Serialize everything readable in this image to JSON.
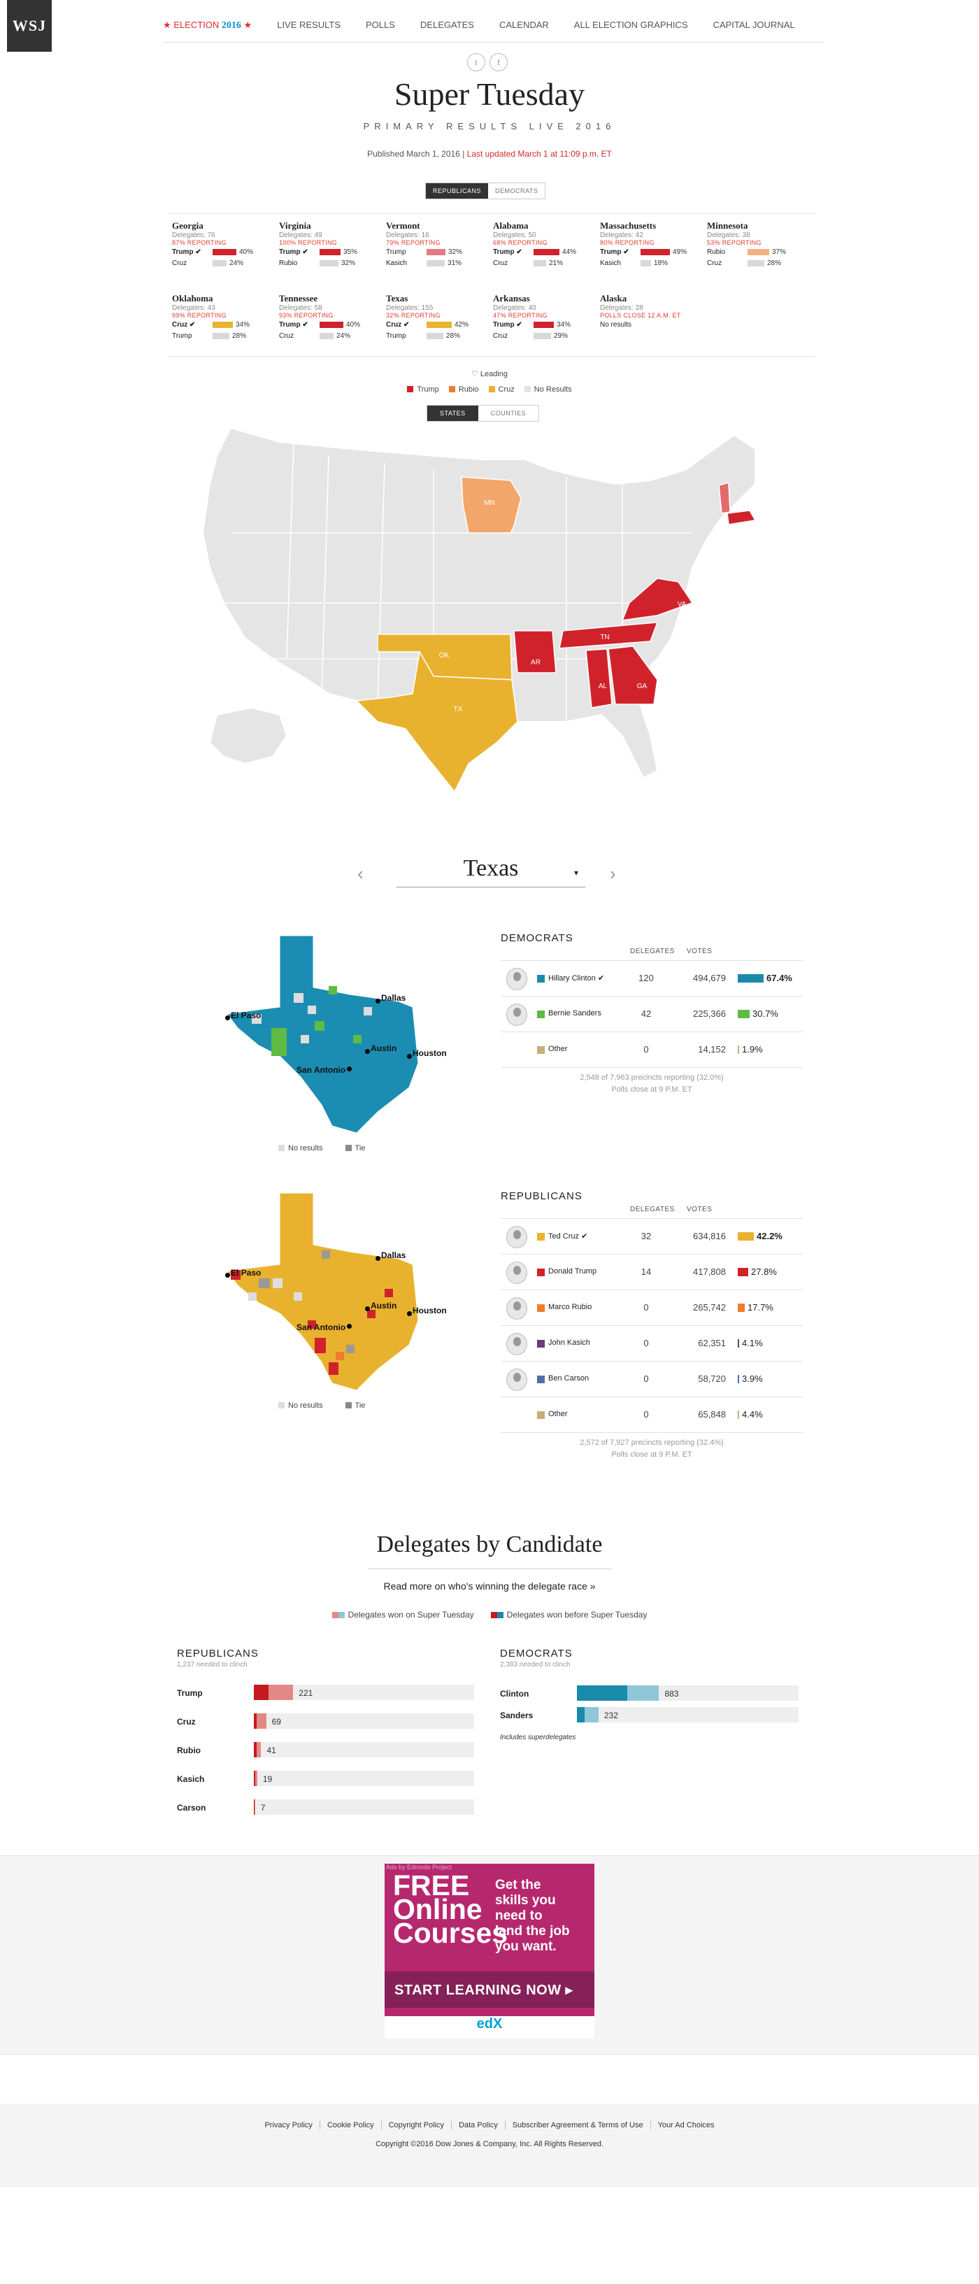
{
  "header": {
    "logo": "WSJ",
    "nav": [
      {
        "label": "LIVE RESULTS"
      },
      {
        "label": "POLLS"
      },
      {
        "label": "DELEGATES"
      },
      {
        "label": "CALENDAR"
      },
      {
        "label": "ALL ELECTION GRAPHICS"
      },
      {
        "label": "CAPITAL JOURNAL"
      }
    ],
    "election_label": "ELECTION",
    "election_year": "2016",
    "social": [
      "twitter-icon",
      "facebook-icon"
    ]
  },
  "page": {
    "title": "Super Tuesday",
    "subtitle": "PRIMARY RESULTS LIVE 2016",
    "published": "Published March 1, 2016 |",
    "updated": "Last updated March 1 at 11:09 p.m. ET"
  },
  "party_toggle": {
    "republicans": "REPUBLICANS",
    "democrats": "DEMOCRATS",
    "active": "republicans"
  },
  "states": [
    {
      "name": "Georgia",
      "delegates": "Delegates: 76",
      "reporting": "87% REPORTING",
      "c1": "Trump ✔",
      "p1": "40%",
      "c2": "Cruz",
      "p2": "24%"
    },
    {
      "name": "Virginia",
      "delegates": "Delegates: 49",
      "reporting": "100% REPORTING",
      "c1": "Trump ✔",
      "p1": "35%",
      "c2": "Rubio",
      "p2": "32%"
    },
    {
      "name": "Vermont",
      "delegates": "Delegates: 16",
      "reporting": "79% REPORTING",
      "c1": "Trump",
      "p1": "32%",
      "c2": "Kasich",
      "p2": "31%"
    },
    {
      "name": "Alabama",
      "delegates": "Delegates: 50",
      "reporting": "68% REPORTING",
      "c1": "Trump ✔",
      "p1": "44%",
      "c2": "Cruz",
      "p2": "21%"
    },
    {
      "name": "Massachusetts",
      "delegates": "Delegates: 42",
      "reporting": "80% REPORTING",
      "c1": "Trump ✔",
      "p1": "49%",
      "c2": "Kasich",
      "p2": "18%"
    },
    {
      "name": "Minnesota",
      "delegates": "Delegates: 38",
      "reporting": "53% REPORTING",
      "c1": "Rubio",
      "p1": "37%",
      "c2": "Cruz",
      "p2": "28%"
    },
    {
      "name": "Oklahoma",
      "delegates": "Delegates: 43",
      "reporting": "99% REPORTING",
      "c1": "Cruz ✔",
      "p1": "34%",
      "c2": "Trump",
      "p2": "28%"
    },
    {
      "name": "Tennessee",
      "delegates": "Delegates: 58",
      "reporting": "93% REPORTING",
      "c1": "Trump ✔",
      "p1": "40%",
      "c2": "Cruz",
      "p2": "24%"
    },
    {
      "name": "Texas",
      "delegates": "Delegates: 155",
      "reporting": "32% REPORTING",
      "c1": "Cruz ✔",
      "p1": "42%",
      "c2": "Trump",
      "p2": "28%"
    },
    {
      "name": "Arkansas",
      "delegates": "Delegates: 40",
      "reporting": "47% REPORTING",
      "c1": "Trump ✔",
      "p1": "34%",
      "c2": "Cruz",
      "p2": "29%"
    },
    {
      "name": "Alaska",
      "delegates": "Delegates: 28",
      "reporting": "POLLS CLOSE 12 A.M. ET",
      "c1": "No results",
      "p1": "",
      "c2": "",
      "p2": ""
    }
  ],
  "legend": {
    "leading": "Leading",
    "items": [
      {
        "label": "Trump",
        "color": "#d0222b"
      },
      {
        "label": "Rubio",
        "color": "#ee7d2e"
      },
      {
        "label": "Cruz",
        "color": "#e9b22e"
      },
      {
        "label": "No Results",
        "color": "#e2e2e2"
      }
    ]
  },
  "map_toggle": {
    "states": "STATES",
    "counties": "COUNTIES"
  },
  "map_labels": [
    "MN",
    "OK",
    "TX",
    "AR",
    "TN",
    "VA",
    "AL",
    "GA"
  ],
  "selector": {
    "state": "Texas"
  },
  "democrats": {
    "heading": "DEMOCRATS",
    "col_delegates": "DELEGATES",
    "col_votes": "VOTES",
    "candidates": [
      {
        "name": "Hillary Clinton ✔",
        "delegates": "120",
        "votes": "494,679",
        "pct": "67.4%",
        "value": 67.4,
        "color": "#1a8aab",
        "winner": true,
        "avatar": true
      },
      {
        "name": "Bernie Sanders",
        "delegates": "42",
        "votes": "225,366",
        "pct": "30.7%",
        "value": 30.7,
        "color": "#5fba46",
        "winner": false,
        "avatar": true
      },
      {
        "name": "Other",
        "delegates": "0",
        "votes": "14,152",
        "pct": "1.9%",
        "value": 1.9,
        "color": "#c4b078",
        "winner": false,
        "avatar": false
      }
    ],
    "foot1": "2,548 of 7,963 precincts reporting (32.0%)",
    "foot2": "Polls close at 9 P.M. ET",
    "map_legend": [
      "No results",
      "Tie"
    ]
  },
  "republicans": {
    "heading": "REPUBLICANS",
    "col_delegates": "DELEGATES",
    "col_votes": "VOTES",
    "candidates": [
      {
        "name": "Ted Cruz ✔",
        "delegates": "32",
        "votes": "634,816",
        "pct": "42.2%",
        "value": 42.2,
        "color": "#e9b22e",
        "winner": true,
        "avatar": true
      },
      {
        "name": "Donald Trump",
        "delegates": "14",
        "votes": "417,808",
        "pct": "27.8%",
        "value": 27.8,
        "color": "#d0222b",
        "winner": false,
        "avatar": true
      },
      {
        "name": "Marco Rubio",
        "delegates": "0",
        "votes": "265,742",
        "pct": "17.7%",
        "value": 17.7,
        "color": "#ee7d2e",
        "winner": false,
        "avatar": true
      },
      {
        "name": "John Kasich",
        "delegates": "0",
        "votes": "62,351",
        "pct": "4.1%",
        "value": 4.1,
        "color": "#6b3d7c",
        "winner": false,
        "avatar": true
      },
      {
        "name": "Ben Carson",
        "delegates": "0",
        "votes": "58,720",
        "pct": "3.9%",
        "value": 3.9,
        "color": "#4f6fa8",
        "winner": false,
        "avatar": true
      },
      {
        "name": "Other",
        "delegates": "0",
        "votes": "65,848",
        "pct": "4.4%",
        "value": 4.4,
        "color": "#c4b078",
        "winner": false,
        "avatar": false
      }
    ],
    "foot1": "2,572 of 7,927 precincts reporting (32.4%)",
    "foot2": "Polls close at 9 P.M. ET",
    "map_legend": [
      "No results",
      "Tie"
    ]
  },
  "cities": [
    "El Paso",
    "Dallas",
    "Austin",
    "Houston",
    "San Antonio"
  ],
  "delegates_by_candidate": {
    "title": "Delegates by Candidate",
    "link": "Read more on who's winning the delegate race »",
    "legend_tuesday": "Delegates won on Super Tuesday",
    "legend_before": "Delegates won before Super Tuesday",
    "rep_heading": "REPUBLICANS",
    "rep_needed": "1,237 needed to clinch",
    "dem_heading": "DEMOCRATS",
    "dem_needed": "2,383 needed to clinch",
    "dem_note": "Includes superdelegates",
    "rep_rows": [
      {
        "name": "Trump",
        "before": 82,
        "tuesday": 139,
        "total": "221"
      },
      {
        "name": "Cruz",
        "before": 17,
        "tuesday": 52,
        "total": "69"
      },
      {
        "name": "Rubio",
        "before": 16,
        "tuesday": 25,
        "total": "41"
      },
      {
        "name": "Kasich",
        "before": 6,
        "tuesday": 13,
        "total": "19"
      },
      {
        "name": "Carson",
        "before": 4,
        "tuesday": 3,
        "total": "7"
      }
    ],
    "dem_rows": [
      {
        "name": "Clinton",
        "before": 544,
        "tuesday": 339,
        "total": "883"
      },
      {
        "name": "Sanders",
        "before": 85,
        "tuesday": 147,
        "total": "232"
      }
    ]
  },
  "ad": {
    "tag": "Ads by Edmodo Project",
    "free": "FREE",
    "online": "Online",
    "courses": "Courses",
    "copy1": "Get the",
    "copy2": "skills you",
    "copy3": "need to",
    "copy4": "land the job",
    "copy5": "you want.",
    "cta": "START LEARNING NOW ▸",
    "brand": "edX"
  },
  "footer": {
    "links": [
      "Privacy Policy",
      "Cookie Policy",
      "Copyright Policy",
      "Data Policy",
      "Subscriber Agreement & Terms of Use",
      "Your Ad Choices"
    ],
    "copyright": "Copyright ©2016 Dow Jones & Company, Inc. All Rights Reserved."
  }
}
